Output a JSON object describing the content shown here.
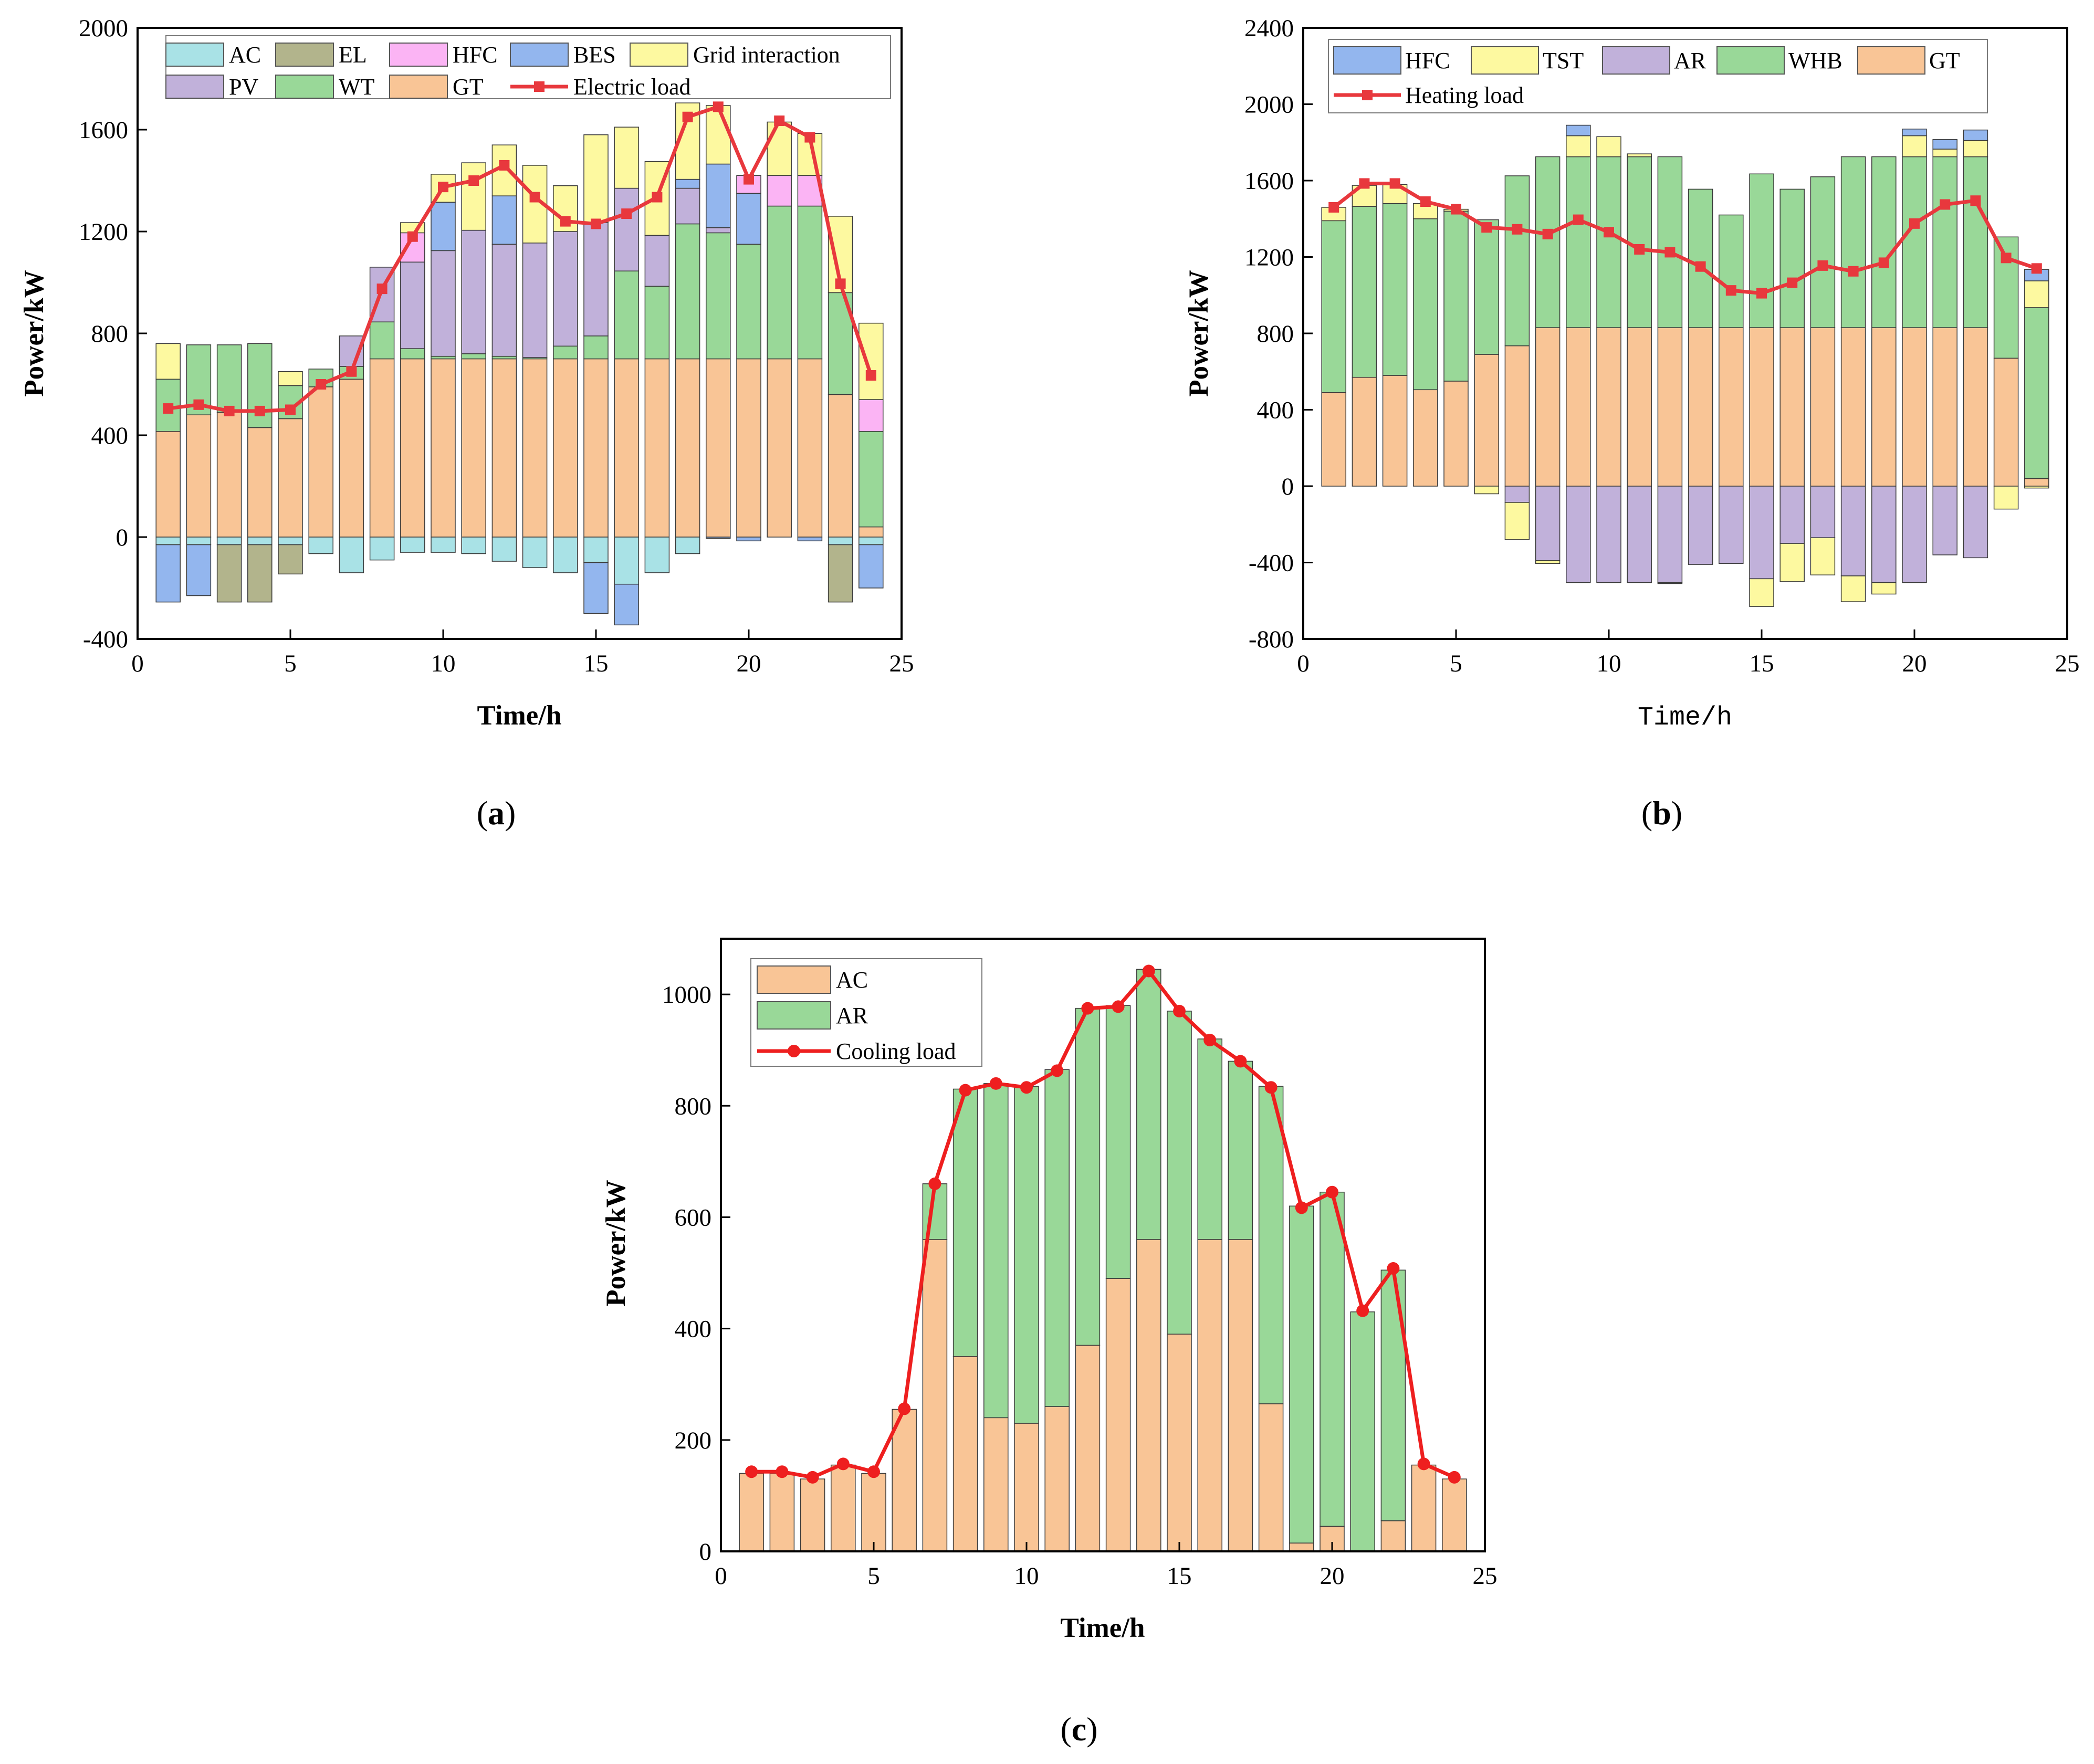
{
  "chart_data": [
    {
      "id": "a",
      "type": "bar",
      "stacked": true,
      "caption_letter": "a",
      "xlabel": "Time/h",
      "ylabel": "Power/kW",
      "xlim": [
        0,
        25
      ],
      "ylim": [
        -400,
        2000
      ],
      "xticks": [
        0,
        5,
        10,
        15,
        20,
        25
      ],
      "yticks": [
        -400,
        0,
        400,
        800,
        1200,
        1600,
        2000
      ],
      "x": [
        1,
        2,
        3,
        4,
        5,
        6,
        7,
        8,
        9,
        10,
        11,
        12,
        13,
        14,
        15,
        16,
        17,
        18,
        19,
        20,
        21,
        22,
        23,
        24
      ],
      "legend_position": "top",
      "series": [
        {
          "name": "GT",
          "color": "#F9C596",
          "values": [
            415,
            480,
            490,
            430,
            465,
            590,
            620,
            700,
            700,
            700,
            700,
            700,
            700,
            700,
            700,
            700,
            700,
            700,
            700,
            700,
            700,
            700,
            560,
            40
          ]
        },
        {
          "name": "WT",
          "color": "#99D898",
          "values": [
            205,
            275,
            265,
            330,
            130,
            70,
            50,
            145,
            40,
            10,
            20,
            10,
            5,
            50,
            90,
            345,
            285,
            530,
            495,
            450,
            600,
            600,
            400,
            375
          ]
        },
        {
          "name": "PV",
          "color": "#C1B1DA",
          "values": [
            0,
            0,
            0,
            0,
            0,
            0,
            120,
            215,
            340,
            415,
            485,
            440,
            450,
            450,
            445,
            325,
            200,
            140,
            20,
            0,
            0,
            0,
            0,
            0
          ]
        },
        {
          "name": "BES",
          "color": "#93B6EE",
          "values": [
            0,
            0,
            0,
            0,
            0,
            0,
            0,
            0,
            0,
            190,
            0,
            190,
            0,
            0,
            0,
            0,
            0,
            35,
            250,
            200,
            0,
            0,
            0,
            0
          ]
        },
        {
          "name": "HFC",
          "color": "#FBB4F4",
          "values": [
            0,
            0,
            0,
            0,
            0,
            0,
            0,
            0,
            115,
            0,
            0,
            0,
            0,
            0,
            0,
            0,
            0,
            0,
            0,
            70,
            120,
            120,
            0,
            125
          ]
        },
        {
          "name": "Grid interaction",
          "color": "#FDF9A0",
          "values": [
            140,
            0,
            0,
            0,
            55,
            0,
            0,
            0,
            40,
            110,
            265,
            200,
            305,
            180,
            345,
            240,
            290,
            300,
            230,
            0,
            210,
            165,
            300,
            300
          ]
        },
        {
          "name": "AC",
          "color": "#A9E2E6",
          "values": [
            -30,
            -30,
            -30,
            -30,
            -30,
            -65,
            -140,
            -90,
            -60,
            -60,
            -65,
            -95,
            -120,
            -140,
            -100,
            -185,
            -140,
            -65,
            0,
            0,
            0,
            0,
            -30,
            -30
          ]
        },
        {
          "name": "EL",
          "color": "#B2B48C",
          "values": [
            0,
            0,
            -225,
            -225,
            -115,
            0,
            0,
            0,
            0,
            0,
            0,
            0,
            0,
            0,
            0,
            0,
            0,
            0,
            0,
            0,
            0,
            0,
            -225,
            0
          ]
        },
        {
          "name": "BES",
          "color": "#93B6EE",
          "values": [
            -225,
            -200,
            0,
            0,
            0,
            0,
            0,
            0,
            0,
            0,
            0,
            0,
            0,
            0,
            -200,
            -160,
            0,
            0,
            -5,
            -15,
            0,
            -15,
            0,
            -170
          ]
        }
      ],
      "legend": [
        {
          "label": "AC",
          "kind": "box",
          "color": "#A9E2E6"
        },
        {
          "label": "EL",
          "kind": "box",
          "color": "#B2B48C"
        },
        {
          "label": "HFC",
          "kind": "box",
          "color": "#FBB4F4"
        },
        {
          "label": "BES",
          "kind": "box",
          "color": "#93B6EE"
        },
        {
          "label": "Grid interaction",
          "kind": "box",
          "color": "#FDF9A0"
        },
        {
          "label": "PV",
          "kind": "box",
          "color": "#C1B1DA"
        },
        {
          "label": "WT",
          "kind": "box",
          "color": "#99D898"
        },
        {
          "label": "GT",
          "kind": "box",
          "color": "#F9C596"
        },
        {
          "label": "Electric load",
          "kind": "line",
          "color": "#E8383D",
          "marker": "square"
        }
      ],
      "line": {
        "name": "Electric load",
        "color": "#E8383D",
        "marker": "square",
        "values": [
          505,
          520,
          495,
          495,
          500,
          600,
          650,
          975,
          1180,
          1375,
          1400,
          1460,
          1335,
          1240,
          1230,
          1270,
          1335,
          1650,
          1690,
          1405,
          1635,
          1570,
          995,
          635
        ]
      }
    },
    {
      "id": "b",
      "type": "bar",
      "stacked": true,
      "caption_letter": "b",
      "xlabel": "Time/h",
      "ylabel": "Power/kW",
      "xlim": [
        0,
        25
      ],
      "ylim": [
        -800,
        2400
      ],
      "xticks": [
        0,
        5,
        10,
        15,
        20,
        25
      ],
      "yticks": [
        -800,
        -400,
        0,
        400,
        800,
        1200,
        1600,
        2000,
        2400
      ],
      "x": [
        1,
        2,
        3,
        4,
        5,
        6,
        7,
        8,
        9,
        10,
        11,
        12,
        13,
        14,
        15,
        16,
        17,
        18,
        19,
        20,
        21,
        22,
        23,
        24
      ],
      "legend_position": "top",
      "series": [
        {
          "name": "GT",
          "color": "#F9C596",
          "values": [
            490,
            570,
            580,
            505,
            550,
            690,
            735,
            830,
            830,
            830,
            830,
            830,
            830,
            830,
            830,
            830,
            830,
            830,
            830,
            830,
            830,
            830,
            670,
            40
          ]
        },
        {
          "name": "WHB",
          "color": "#99D898",
          "values": [
            900,
            895,
            900,
            895,
            890,
            705,
            890,
            895,
            895,
            895,
            895,
            895,
            725,
            590,
            805,
            725,
            790,
            895,
            895,
            895,
            895,
            895,
            635,
            895
          ]
        },
        {
          "name": "TST",
          "color": "#FDF9A0",
          "values": [
            70,
            110,
            100,
            80,
            10,
            0,
            0,
            0,
            110,
            105,
            15,
            0,
            0,
            0,
            0,
            0,
            0,
            0,
            0,
            110,
            40,
            85,
            0,
            140
          ]
        },
        {
          "name": "HFC",
          "color": "#93B6EE",
          "values": [
            0,
            0,
            0,
            0,
            0,
            0,
            0,
            0,
            55,
            0,
            0,
            0,
            0,
            0,
            0,
            0,
            0,
            0,
            0,
            35,
            50,
            55,
            0,
            60
          ]
        },
        {
          "name": "AR",
          "color": "#C1B1DA",
          "values": [
            0,
            0,
            0,
            0,
            0,
            0,
            -85,
            -390,
            -505,
            -505,
            -505,
            -505,
            -410,
            -405,
            -485,
            -300,
            -270,
            -470,
            -505,
            -505,
            -360,
            -375,
            0,
            0
          ]
        },
        {
          "name": "TST",
          "color": "#FDF9A0",
          "values": [
            0,
            0,
            0,
            0,
            0,
            -40,
            -195,
            -15,
            0,
            0,
            0,
            -5,
            0,
            0,
            -145,
            -200,
            -195,
            -135,
            -60,
            0,
            0,
            0,
            -120,
            -10
          ]
        }
      ],
      "legend": [
        {
          "label": "HFC",
          "kind": "box",
          "color": "#93B6EE"
        },
        {
          "label": "TST",
          "kind": "box",
          "color": "#FDF9A0"
        },
        {
          "label": "AR",
          "kind": "box",
          "color": "#C1B1DA"
        },
        {
          "label": "WHB",
          "kind": "box",
          "color": "#99D898"
        },
        {
          "label": "GT",
          "kind": "box",
          "color": "#F9C596"
        },
        {
          "label": "Heating load",
          "kind": "line",
          "color": "#E8383D",
          "marker": "square"
        }
      ],
      "line": {
        "name": "Heating load",
        "color": "#E8383D",
        "marker": "square",
        "values": [
          1460,
          1585,
          1585,
          1490,
          1450,
          1355,
          1345,
          1320,
          1395,
          1330,
          1240,
          1225,
          1150,
          1025,
          1010,
          1065,
          1155,
          1125,
          1170,
          1375,
          1475,
          1495,
          1195,
          1140
        ]
      }
    },
    {
      "id": "c",
      "type": "bar",
      "stacked": true,
      "caption_letter": "c",
      "xlabel": "Time/h",
      "ylabel": "Power/kW",
      "xlim": [
        0,
        25
      ],
      "ylim": [
        0,
        1100
      ],
      "xticks": [
        0,
        5,
        10,
        15,
        20,
        25
      ],
      "yticks": [
        0,
        200,
        400,
        600,
        800,
        1000
      ],
      "x": [
        1,
        2,
        3,
        4,
        5,
        6,
        7,
        8,
        9,
        10,
        11,
        12,
        13,
        14,
        15,
        16,
        17,
        18,
        19,
        20,
        21,
        22,
        23,
        24
      ],
      "legend_position": "top-left",
      "series": [
        {
          "name": "AC",
          "color": "#F9C596",
          "values": [
            140,
            140,
            130,
            155,
            140,
            255,
            560,
            350,
            240,
            230,
            260,
            370,
            490,
            560,
            390,
            560,
            560,
            265,
            15,
            45,
            0,
            55,
            155,
            130
          ]
        },
        {
          "name": "AR",
          "color": "#99D898",
          "values": [
            0,
            0,
            0,
            0,
            0,
            0,
            100,
            480,
            600,
            605,
            605,
            605,
            490,
            485,
            580,
            360,
            320,
            570,
            605,
            600,
            430,
            450,
            0,
            0
          ]
        }
      ],
      "legend": [
        {
          "label": "AC",
          "kind": "box",
          "color": "#F9C596"
        },
        {
          "label": "AR",
          "kind": "box",
          "color": "#99D898"
        },
        {
          "label": "Cooling load",
          "kind": "line",
          "color": "#EE1F1F",
          "marker": "circle"
        }
      ],
      "line": {
        "name": "Cooling load",
        "color": "#EE1F1F",
        "marker": "circle",
        "values": [
          143,
          143,
          133,
          157,
          143,
          256,
          660,
          828,
          840,
          833,
          863,
          975,
          978,
          1042,
          970,
          918,
          880,
          833,
          617,
          645,
          432,
          508,
          157,
          133
        ]
      }
    }
  ]
}
